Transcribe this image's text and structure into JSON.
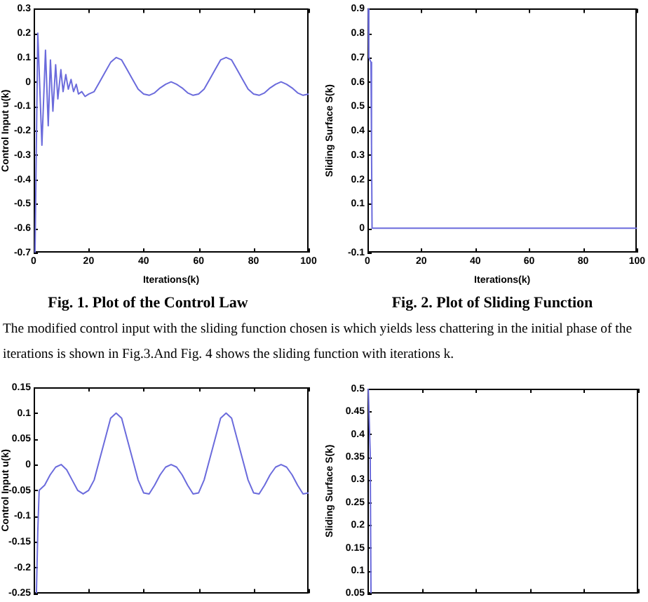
{
  "chart_data": [
    {
      "type": "line",
      "title": "Fig. 1. Plot of the Control Law",
      "xlabel": "Iterations(k)",
      "ylabel": "Control Input u(k)",
      "legend": false,
      "marker": "none",
      "x": [
        0.5,
        1.5,
        3,
        4.3,
        5.3,
        6.1,
        7,
        8,
        8.8,
        9.9,
        10.7,
        11.7,
        12.6,
        13.6,
        14.5,
        15.5,
        16.3,
        17.5,
        18.7,
        20,
        22,
        24,
        26,
        28,
        30,
        32,
        34,
        36,
        38,
        40,
        42,
        44,
        46,
        48,
        50,
        52,
        54,
        56,
        58,
        60,
        62,
        64,
        66,
        68,
        70,
        72,
        74,
        76,
        78,
        80,
        82,
        84,
        86,
        88,
        90,
        92,
        94,
        96,
        98,
        100
      ],
      "series": [
        {
          "color": "#6b6bdc",
          "values": [
            -0.7,
            0.2,
            -0.26,
            0.13,
            -0.18,
            0.09,
            -0.12,
            0.07,
            -0.07,
            0.05,
            -0.04,
            0.03,
            -0.03,
            0.01,
            -0.04,
            -0.01,
            -0.05,
            -0.04,
            -0.06,
            -0.05,
            -0.04,
            0,
            0.04,
            0.08,
            0.1,
            0.09,
            0.05,
            0.01,
            -0.03,
            -0.05,
            -0.055,
            -0.045,
            -0.025,
            -0.01,
            0,
            -0.01,
            -0.025,
            -0.045,
            -0.055,
            -0.05,
            -0.03,
            0.01,
            0.05,
            0.09,
            0.1,
            0.09,
            0.05,
            0.01,
            -0.03,
            -0.05,
            -0.055,
            -0.045,
            -0.025,
            -0.01,
            0,
            -0.01,
            -0.025,
            -0.045,
            -0.055,
            -0.05
          ]
        }
      ],
      "xlim": [
        0,
        100
      ],
      "xticks": [
        0,
        20,
        40,
        60,
        80,
        100
      ],
      "ylim": [
        -0.7,
        0.3
      ],
      "yticks": [
        -0.7,
        -0.6,
        -0.5,
        -0.4,
        -0.3,
        -0.2,
        -0.1,
        0,
        0.1,
        0.2,
        0.3
      ]
    },
    {
      "type": "line",
      "title": "Fig. 2. Plot of Sliding Function",
      "xlabel": "Iterations(k)",
      "ylabel": "Sliding Surface S(k)",
      "legend": false,
      "marker": "none",
      "x": [
        0.3,
        0.5,
        1.3,
        1.5,
        1.7,
        100
      ],
      "series": [
        {
          "color": "#6b6bdc",
          "values": [
            0.9,
            0.7,
            0.68,
            0.34,
            0,
            0
          ]
        }
      ],
      "xlim": [
        0,
        100
      ],
      "xticks": [
        0,
        20,
        40,
        60,
        80,
        100
      ],
      "ylim": [
        -0.1,
        0.9
      ],
      "yticks": [
        -0.1,
        0,
        0.1,
        0.2,
        0.3,
        0.4,
        0.5,
        0.6,
        0.7,
        0.8,
        0.9
      ]
    },
    {
      "type": "line",
      "ylabel": "Control Input u(k)",
      "legend": false,
      "marker": "none",
      "tick_labels": "y",
      "annotations": [
        "The modified control input with the sliding function chosen is which yields less chattering in the initial phase of the iterations is shown in Fig.3.And Fig. 4 shows the sliding function with iterations k."
      ],
      "x": [
        1,
        1.5,
        2,
        4,
        6,
        8,
        10,
        12,
        14,
        16,
        18,
        20,
        22,
        24,
        26,
        28,
        30,
        32,
        34,
        36,
        38,
        40,
        42,
        44,
        46,
        48,
        50,
        52,
        54,
        56,
        58,
        60,
        62,
        64,
        66,
        68,
        70,
        72,
        74,
        76,
        78,
        80,
        82,
        84,
        86,
        88,
        90,
        92,
        94,
        96,
        98,
        100
      ],
      "series": [
        {
          "color": "#6b6bdc",
          "values": [
            -0.25,
            -0.13,
            -0.05,
            -0.04,
            -0.02,
            -0.005,
            0,
            -0.01,
            -0.03,
            -0.05,
            -0.057,
            -0.05,
            -0.03,
            0.01,
            0.05,
            0.09,
            0.1,
            0.09,
            0.05,
            0.01,
            -0.03,
            -0.055,
            -0.057,
            -0.04,
            -0.02,
            -0.005,
            0,
            -0.005,
            -0.02,
            -0.04,
            -0.057,
            -0.055,
            -0.03,
            0.01,
            0.05,
            0.09,
            0.1,
            0.09,
            0.05,
            0.01,
            -0.03,
            -0.055,
            -0.057,
            -0.04,
            -0.02,
            -0.005,
            0,
            -0.005,
            -0.02,
            -0.04,
            -0.057,
            -0.055
          ]
        }
      ],
      "xlim": [
        0,
        100
      ],
      "xticks": [
        {
          "value": 0,
          "label": null
        },
        {
          "value": 20,
          "label": null
        },
        {
          "value": 40,
          "label": null
        },
        {
          "value": 60,
          "label": null
        },
        {
          "value": 80,
          "label": null
        },
        {
          "value": 100,
          "label": null
        }
      ],
      "ylim": [
        -0.25,
        0.15
      ],
      "yticks": [
        -0.25,
        -0.2,
        -0.15,
        -0.1,
        -0.05,
        0,
        0.05,
        0.1,
        0.15
      ]
    },
    {
      "type": "line",
      "ylabel": "Sliding Surface S(k)",
      "legend": false,
      "marker": "none",
      "tick_labels": "y",
      "x": [
        0.3,
        1,
        1.3
      ],
      "series": [
        {
          "color": "#6b6bdc",
          "values": [
            0.5,
            0.36,
            0.05
          ]
        }
      ],
      "xlim": [
        0,
        100
      ],
      "xticks": [
        {
          "value": 0,
          "label": null
        },
        {
          "value": 20,
          "label": null
        },
        {
          "value": 40,
          "label": null
        },
        {
          "value": 60,
          "label": null
        },
        {
          "value": 80,
          "label": null
        },
        {
          "value": 100,
          "label": null
        }
      ],
      "ylim": [
        0.05,
        0.5
      ],
      "yticks": [
        0.05,
        0.1,
        0.15,
        0.2,
        0.25,
        0.3,
        0.35,
        0.4,
        0.45,
        0.5
      ]
    }
  ]
}
